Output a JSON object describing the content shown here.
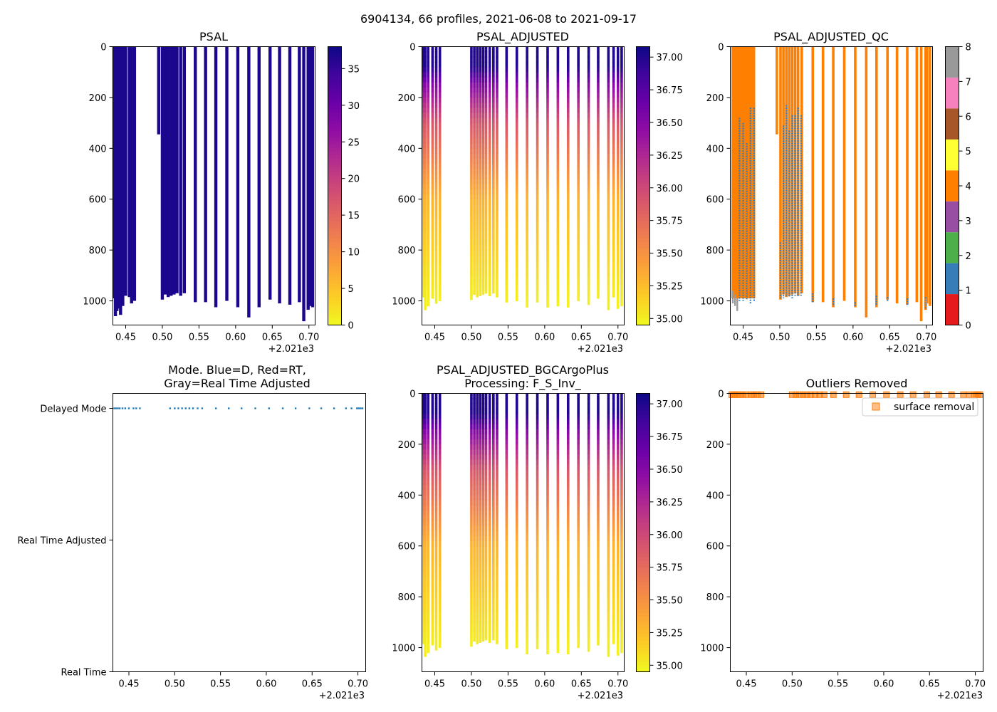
{
  "figure_title": "6904134, 66 profiles, 2021-06-08 to 2021-09-17",
  "colors": {
    "plasma": [
      "#0d0887",
      "#41049d",
      "#6a00a8",
      "#8f0da4",
      "#b12a90",
      "#cc4778",
      "#e16462",
      "#f2844b",
      "#fca636",
      "#fcce25",
      "#f0f921"
    ],
    "qc": [
      "#e41a1c",
      "#377eb8",
      "#4daf4a",
      "#984ea3",
      "#ff7f00",
      "#ffff33",
      "#a65628",
      "#f781bf",
      "#999999"
    ],
    "mode_marker": "#1f77b4",
    "outlier_marker": "#ff7f0e"
  },
  "chart_data": [
    {
      "id": "psal",
      "type": "heatmap",
      "title": "PSAL",
      "x_offset_label": "+2.021e3",
      "xticks": [
        "0.45",
        "0.50",
        "0.55",
        "0.60",
        "0.65",
        "0.70"
      ],
      "yticks": [
        "0",
        "200",
        "400",
        "600",
        "800",
        "1000"
      ],
      "xlim": [
        0.4325,
        0.7085
      ],
      "ylim": [
        1095,
        0
      ],
      "colorbar": {
        "range": [
          0,
          38
        ],
        "ticks": [
          "0",
          "5",
          "10",
          "15",
          "20",
          "25",
          "30",
          "35"
        ],
        "colormap": "plasma_r"
      },
      "profiles_x": [
        0.434,
        0.436,
        0.438,
        0.44,
        0.443,
        0.446,
        0.45,
        0.455,
        0.458,
        0.462,
        0.495,
        0.5,
        0.504,
        0.508,
        0.512,
        0.516,
        0.52,
        0.525,
        0.53,
        0.545,
        0.559,
        0.573,
        0.588,
        0.603,
        0.618,
        0.632,
        0.647,
        0.66,
        0.674,
        0.687,
        0.693,
        0.699,
        0.701,
        0.703,
        0.705
      ],
      "max_depth_dbar": [
        990,
        1060,
        1040,
        1030,
        1055,
        1020,
        980,
        985,
        1010,
        1000,
        345,
        995,
        975,
        985,
        980,
        975,
        970,
        980,
        970,
        1005,
        1005,
        1025,
        1000,
        1025,
        1065,
        1025,
        995,
        1010,
        1015,
        1005,
        1080,
        1035,
        1010,
        1020,
        1025
      ],
      "value_psal": 37
    },
    {
      "id": "psal_adjusted",
      "type": "heatmap",
      "title": "PSAL_ADJUSTED",
      "x_offset_label": "+2.021e3",
      "xticks": [
        "0.45",
        "0.50",
        "0.55",
        "0.60",
        "0.65",
        "0.70"
      ],
      "yticks": [
        "0",
        "200",
        "400",
        "600",
        "800",
        "1000"
      ],
      "xlim": [
        0.4325,
        0.7085
      ],
      "ylim": [
        1095,
        0
      ],
      "colorbar": {
        "range": [
          34.95,
          37.08
        ],
        "ticks": [
          "35.00",
          "35.25",
          "35.50",
          "35.75",
          "36.00",
          "36.25",
          "36.50",
          "36.75",
          "37.00"
        ],
        "colormap": "plasma_r"
      },
      "profiles_x": [
        0.434,
        0.437,
        0.441,
        0.447,
        0.452,
        0.457,
        0.5,
        0.504,
        0.508,
        0.512,
        0.516,
        0.52,
        0.525,
        0.53,
        0.535,
        0.548,
        0.562,
        0.576,
        0.59,
        0.604,
        0.618,
        0.632,
        0.646,
        0.66,
        0.673,
        0.687,
        0.694,
        0.7,
        0.705
      ],
      "max_depth_dbar": [
        985,
        1035,
        1020,
        990,
        1010,
        1000,
        995,
        975,
        985,
        980,
        975,
        970,
        980,
        970,
        985,
        1005,
        1000,
        1025,
        1005,
        1025,
        1020,
        1025,
        1000,
        1015,
        990,
        1035,
        985,
        1030,
        1020
      ],
      "profile_gradient": [
        [
          0,
          37.0
        ],
        [
          80,
          37.0
        ],
        [
          150,
          36.5
        ],
        [
          300,
          35.9
        ],
        [
          600,
          35.3
        ],
        [
          1000,
          35.0
        ]
      ]
    },
    {
      "id": "psal_adjusted_qc",
      "type": "heatmap",
      "title": "PSAL_ADJUSTED_QC",
      "x_offset_label": "+2.021e3",
      "xticks": [
        "0.45",
        "0.50",
        "0.55",
        "0.60",
        "0.65",
        "0.70"
      ],
      "yticks": [
        "0",
        "200",
        "400",
        "600",
        "800",
        "1000"
      ],
      "xlim": [
        0.4325,
        0.7085
      ],
      "ylim": [
        1095,
        0
      ],
      "colorbar": {
        "range": [
          0,
          8
        ],
        "ticks": [
          "0",
          "1",
          "2",
          "3",
          "4",
          "5",
          "6",
          "7",
          "8"
        ],
        "colormap": "qc_categorical"
      },
      "fill_start_x": 0.434,
      "fill_end_x": 0.4665,
      "fill_depth_dbar": 990,
      "fill_value": 4,
      "profiles_x": [
        0.496,
        0.501,
        0.505,
        0.509,
        0.513,
        0.517,
        0.521,
        0.525,
        0.53,
        0.545,
        0.559,
        0.573,
        0.588,
        0.603,
        0.618,
        0.632,
        0.647,
        0.66,
        0.674,
        0.687,
        0.693,
        0.699,
        0.701,
        0.705
      ],
      "max_depth_dbar": [
        345,
        995,
        975,
        985,
        980,
        975,
        970,
        980,
        970,
        1005,
        1005,
        1025,
        1000,
        1025,
        1065,
        1025,
        995,
        1010,
        1015,
        1005,
        1080,
        1035,
        1010,
        1020
      ],
      "value_qc": 4,
      "flag1_segments": [
        [
          0.445,
          280,
          1000
        ],
        [
          0.45,
          300,
          1000
        ],
        [
          0.455,
          380,
          995
        ],
        [
          0.46,
          240,
          1010
        ],
        [
          0.465,
          240,
          1000
        ],
        [
          0.501,
          770,
          990
        ],
        [
          0.505,
          310,
          990
        ],
        [
          0.509,
          230,
          980
        ],
        [
          0.513,
          330,
          985
        ],
        [
          0.517,
          270,
          990
        ],
        [
          0.521,
          270,
          980
        ],
        [
          0.525,
          240,
          985
        ],
        [
          0.529,
          270,
          980
        ],
        [
          0.545,
          970,
          1005
        ],
        [
          0.573,
          990,
          1020
        ],
        [
          0.603,
          1005,
          1020
        ],
        [
          0.632,
          980,
          1015
        ],
        [
          0.647,
          985,
          1000
        ],
        [
          0.674,
          990,
          1020
        ],
        [
          0.699,
          985,
          1035
        ]
      ],
      "flag8_segments": [
        [
          0.436,
          960,
          1010
        ],
        [
          0.439,
          975,
          1020
        ],
        [
          0.442,
          990,
          1040
        ],
        [
          0.7,
          990,
          1020
        ]
      ]
    },
    {
      "id": "mode",
      "type": "scatter",
      "title_line1": "Mode. Blue=D, Red=RT,",
      "title_line2": "Gray=Real Time Adjusted",
      "x_offset_label": "+2.021e3",
      "xticks": [
        "0.45",
        "0.50",
        "0.55",
        "0.60",
        "0.65",
        "0.70"
      ],
      "yticks": [
        "Delayed Mode",
        "Real Time Adjusted",
        "Real Time"
      ],
      "xlim": [
        0.4325,
        0.7085
      ],
      "points_x": [
        0.434,
        0.436,
        0.438,
        0.44,
        0.443,
        0.446,
        0.45,
        0.455,
        0.458,
        0.462,
        0.495,
        0.5,
        0.504,
        0.508,
        0.512,
        0.516,
        0.52,
        0.525,
        0.53,
        0.545,
        0.559,
        0.573,
        0.588,
        0.603,
        0.618,
        0.632,
        0.647,
        0.66,
        0.674,
        0.687,
        0.693,
        0.699,
        0.701,
        0.703,
        0.705
      ],
      "mode_value": "Delayed Mode"
    },
    {
      "id": "bgc",
      "type": "heatmap",
      "title_line1": "PSAL_ADJUSTED_BGCArgoPlus",
      "title_line2": "Processing: F_S_Inv_",
      "x_offset_label": "+2.021e3",
      "xticks": [
        "0.45",
        "0.50",
        "0.55",
        "0.60",
        "0.65",
        "0.70"
      ],
      "yticks": [
        "0",
        "200",
        "400",
        "600",
        "800",
        "1000"
      ],
      "xlim": [
        0.4325,
        0.7085
      ],
      "ylim": [
        1095,
        0
      ],
      "colorbar": {
        "range": [
          34.95,
          37.08
        ],
        "ticks": [
          "35.00",
          "35.25",
          "35.50",
          "35.75",
          "36.00",
          "36.25",
          "36.50",
          "36.75",
          "37.00"
        ],
        "colormap": "plasma_r"
      },
      "profiles_x": [
        0.434,
        0.437,
        0.441,
        0.447,
        0.452,
        0.457,
        0.5,
        0.504,
        0.508,
        0.512,
        0.516,
        0.52,
        0.525,
        0.53,
        0.535,
        0.548,
        0.562,
        0.576,
        0.59,
        0.604,
        0.618,
        0.632,
        0.646,
        0.66,
        0.673,
        0.687,
        0.694,
        0.7,
        0.705
      ],
      "max_depth_dbar": [
        985,
        1035,
        1020,
        990,
        1010,
        1000,
        995,
        975,
        985,
        980,
        975,
        970,
        980,
        970,
        985,
        1005,
        1000,
        1025,
        1005,
        1025,
        1020,
        1025,
        1000,
        1015,
        990,
        1035,
        985,
        1030,
        1020
      ],
      "profile_gradient": [
        [
          0,
          37.0
        ],
        [
          80,
          37.0
        ],
        [
          150,
          36.5
        ],
        [
          300,
          35.9
        ],
        [
          600,
          35.3
        ],
        [
          1000,
          35.0
        ]
      ]
    },
    {
      "id": "outliers",
      "type": "scatter",
      "title": "Outliers Removed",
      "x_offset_label": "+2.021e3",
      "xticks": [
        "0.45",
        "0.50",
        "0.55",
        "0.60",
        "0.65",
        "0.70"
      ],
      "yticks": [
        "0",
        "200",
        "400",
        "600",
        "800",
        "1000"
      ],
      "xlim": [
        0.4325,
        0.7085
      ],
      "ylim": [
        1095,
        0
      ],
      "legend_label": "surface removal",
      "legend_position": "top-right",
      "points_x": [
        0.434,
        0.436,
        0.438,
        0.44,
        0.443,
        0.446,
        0.45,
        0.455,
        0.458,
        0.462,
        0.466,
        0.5,
        0.504,
        0.508,
        0.512,
        0.516,
        0.52,
        0.525,
        0.53,
        0.535,
        0.545,
        0.559,
        0.573,
        0.588,
        0.603,
        0.618,
        0.632,
        0.647,
        0.66,
        0.674,
        0.687,
        0.693,
        0.699,
        0.701,
        0.703,
        0.705
      ],
      "points_depth_dbar": 5
    }
  ]
}
